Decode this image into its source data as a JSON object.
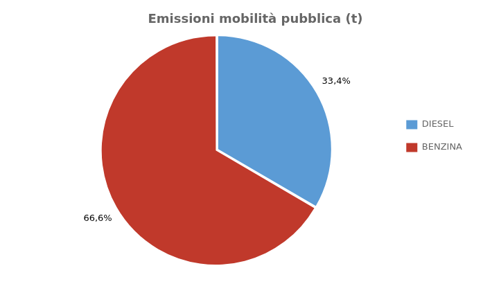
{
  "chart_data": {
    "type": "pie",
    "title": "Emissioni mobilità pubblica (t)",
    "categories": [
      "DIESEL",
      "BENZINA"
    ],
    "values": [
      33.4,
      66.6
    ],
    "value_labels": [
      "33,4%",
      "66,6%"
    ],
    "colors": [
      "#5b9bd5",
      "#c0392b"
    ],
    "data_labels": true,
    "legend": "right"
  }
}
